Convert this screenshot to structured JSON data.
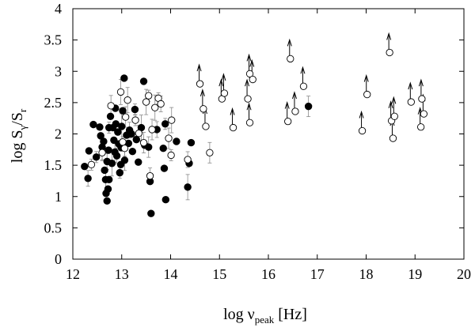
{
  "chart_data": {
    "type": "scatter",
    "title": "",
    "xlabel": "log ν",
    "xlabel_sub": "peak",
    "xlabel_unit": "[Hz]",
    "ylabel": "log S",
    "ylabel_sub1": "γ",
    "ylabel_mid": "/S",
    "ylabel_sub2": "r",
    "xlim": [
      12,
      20
    ],
    "ylim": [
      0,
      4
    ],
    "xticks": [
      "12",
      "13",
      "14",
      "15",
      "16",
      "17",
      "18",
      "19",
      "20"
    ],
    "yticks": [
      "0",
      "0.5",
      "1",
      "1.5",
      "2",
      "2.5",
      "3",
      "3.5",
      "4"
    ],
    "grid": false,
    "legend": "none",
    "series": [
      {
        "marker": "filled-circle",
        "points": [
          [
            12.24,
            1.48
          ],
          [
            12.31,
            1.29
          ],
          [
            12.33,
            1.73
          ],
          [
            12.42,
            2.15
          ],
          [
            12.48,
            1.63
          ],
          [
            12.55,
            2.11
          ],
          [
            12.57,
            1.97
          ],
          [
            12.6,
            1.79
          ],
          [
            12.63,
            1.88
          ],
          [
            12.65,
            1.42
          ],
          [
            12.67,
            1.27
          ],
          [
            12.68,
            1.05
          ],
          [
            12.7,
            0.93
          ],
          [
            12.7,
            1.56
          ],
          [
            12.72,
            1.12
          ],
          [
            12.73,
            1.74
          ],
          [
            12.74,
            2.1
          ],
          [
            12.74,
            1.27
          ],
          [
            12.77,
            2.28
          ],
          [
            12.8,
            1.53
          ],
          [
            12.82,
            2.1
          ],
          [
            12.84,
            1.9
          ],
          [
            12.86,
            1.71
          ],
          [
            12.87,
            2.41
          ],
          [
            12.88,
            2.16
          ],
          [
            12.9,
            1.65
          ],
          [
            12.92,
            2.03
          ],
          [
            12.94,
            1.84
          ],
          [
            12.96,
            1.38
          ],
          [
            12.98,
            1.51
          ],
          [
            12.99,
            1.78
          ],
          [
            13.0,
            2.12
          ],
          [
            13.02,
            2.37
          ],
          [
            13.05,
            2.89
          ],
          [
            13.06,
            1.58
          ],
          [
            13.1,
            1.98
          ],
          [
            13.14,
            1.85
          ],
          [
            13.16,
            2.06
          ],
          [
            13.2,
            2.0
          ],
          [
            13.22,
            1.72
          ],
          [
            13.27,
            2.39
          ],
          [
            13.3,
            1.91
          ],
          [
            13.34,
            1.55
          ],
          [
            13.4,
            2.1
          ],
          [
            13.45,
            2.84
          ],
          [
            13.47,
            1.82
          ],
          [
            13.55,
            1.79
          ],
          [
            13.58,
            1.24
          ],
          [
            13.6,
            0.73
          ],
          [
            13.72,
            2.07
          ],
          [
            13.85,
            1.77
          ],
          [
            13.87,
            1.45
          ],
          [
            13.89,
            2.16
          ],
          [
            13.9,
            0.95
          ],
          [
            14.12,
            1.88
          ],
          [
            14.35,
            1.15
          ],
          [
            14.38,
            1.53
          ],
          [
            14.42,
            1.86
          ],
          [
            16.82,
            2.44
          ]
        ]
      },
      {
        "marker": "open-circle",
        "points": [
          [
            12.38,
            1.51
          ],
          [
            12.6,
            1.7
          ],
          [
            12.78,
            2.45
          ],
          [
            12.98,
            2.67
          ],
          [
            13.02,
            1.87
          ],
          [
            13.06,
            1.77
          ],
          [
            13.08,
            2.27
          ],
          [
            13.12,
            2.54
          ],
          [
            13.28,
            2.22
          ],
          [
            13.35,
            2.01
          ],
          [
            13.45,
            1.86
          ],
          [
            13.5,
            2.51
          ],
          [
            13.55,
            2.61
          ],
          [
            13.58,
            1.33
          ],
          [
            13.62,
            2.07
          ],
          [
            13.68,
            2.42
          ],
          [
            13.75,
            2.57
          ],
          [
            13.8,
            2.48
          ],
          [
            13.96,
            1.93
          ],
          [
            14.02,
            2.22
          ],
          [
            14.01,
            1.66
          ],
          [
            14.35,
            1.59
          ],
          [
            14.8,
            1.7
          ]
        ]
      },
      {
        "marker": "open-circle-lower-limit",
        "points": [
          [
            14.6,
            2.8
          ],
          [
            14.67,
            2.4
          ],
          [
            14.72,
            2.12
          ],
          [
            15.05,
            2.56
          ],
          [
            15.1,
            2.65
          ],
          [
            15.28,
            2.1
          ],
          [
            15.58,
            2.56
          ],
          [
            15.62,
            2.18
          ],
          [
            15.62,
            2.96
          ],
          [
            15.68,
            2.87
          ],
          [
            16.4,
            2.2
          ],
          [
            16.45,
            3.2
          ],
          [
            16.55,
            2.36
          ],
          [
            16.72,
            2.76
          ],
          [
            17.92,
            2.05
          ],
          [
            18.02,
            2.63
          ],
          [
            18.48,
            3.3
          ],
          [
            18.52,
            2.21
          ],
          [
            18.55,
            1.93
          ],
          [
            18.58,
            2.28
          ],
          [
            18.92,
            2.51
          ],
          [
            19.12,
            2.11
          ],
          [
            19.14,
            2.56
          ],
          [
            19.18,
            2.32
          ]
        ]
      }
    ]
  }
}
